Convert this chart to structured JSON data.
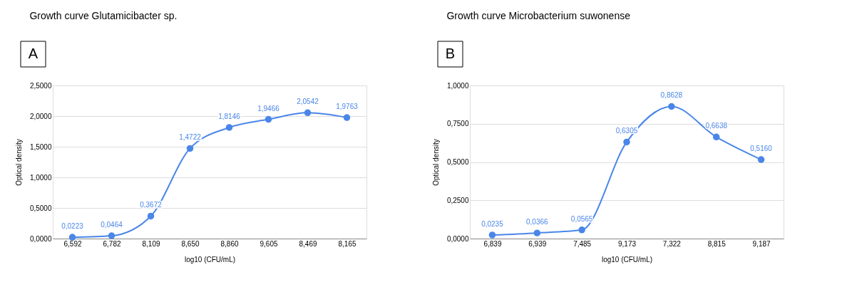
{
  "chart_data": [
    {
      "type": "line",
      "title": "Growth curve Glutamicibacter sp.",
      "annotations": [
        "A"
      ],
      "xlabel": "log10 (CFU/mL)",
      "ylabel": "Optical density",
      "categories": [
        "6,592",
        "6,782",
        "8,109",
        "8,650",
        "8,860",
        "9,605",
        "8,469",
        "8,165"
      ],
      "series": [
        {
          "color": "#4a86e8",
          "values": [
            0.0223,
            0.0464,
            0.3672,
            1.4722,
            1.8146,
            1.9466,
            2.0542,
            1.9763
          ],
          "value_labels": [
            "0,0223",
            "0,0464",
            "0,3672",
            "1,4722",
            "1,8146",
            "1,9466",
            "2,0542",
            "1,9763"
          ]
        }
      ],
      "ylim": [
        0,
        2.5
      ],
      "yticks": [
        {
          "value": 0,
          "label": "0,0000"
        },
        {
          "value": 0.5,
          "label": "0,5000"
        },
        {
          "value": 1,
          "label": "1,0000"
        },
        {
          "value": 1.5,
          "label": "1,5000"
        },
        {
          "value": 2,
          "label": "2,0000"
        },
        {
          "value": 2.5,
          "label": "2,5000"
        }
      ],
      "grid": "y",
      "marker": "circle",
      "line_style": "solid"
    },
    {
      "type": "line",
      "title": "Growth curve Microbacterium suwonense",
      "annotations": [
        "B"
      ],
      "xlabel": "log10 (CFU/mL)",
      "ylabel": "Optical density",
      "categories": [
        "6,839",
        "6,939",
        "7,485",
        "9,173",
        "7,322",
        "8,815",
        "9,187"
      ],
      "series": [
        {
          "color": "#4a86e8",
          "values": [
            0.0235,
            0.0366,
            0.0565,
            0.6305,
            0.8628,
            0.6638,
            0.516
          ],
          "value_labels": [
            "0,0235",
            "0,0366",
            "0,0565",
            "0,6305",
            "0,8628",
            "0,6638",
            "0,5160"
          ]
        }
      ],
      "ylim": [
        0,
        1
      ],
      "yticks": [
        {
          "value": 0,
          "label": "0,0000"
        },
        {
          "value": 0.25,
          "label": "0,2500"
        },
        {
          "value": 0.5,
          "label": "0,5000"
        },
        {
          "value": 0.75,
          "label": "0,7500"
        },
        {
          "value": 1,
          "label": "1,0000"
        }
      ],
      "grid": "y",
      "marker": "circle",
      "line_style": "solid"
    }
  ]
}
